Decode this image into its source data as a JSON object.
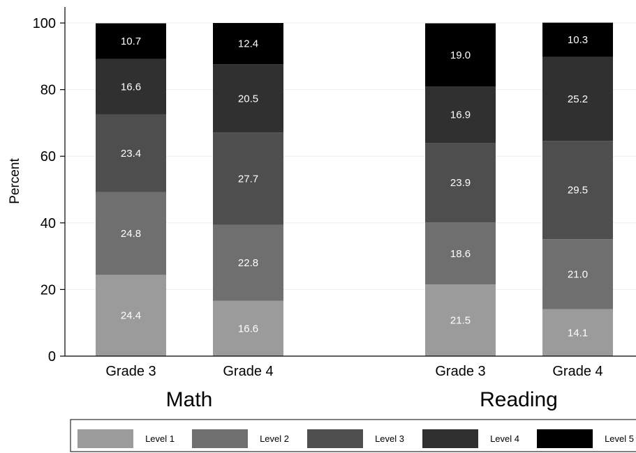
{
  "chart_data": {
    "type": "bar",
    "stacked": true,
    "ylabel": "Percent",
    "ylim": [
      0,
      100
    ],
    "yticks": [
      0,
      20,
      40,
      60,
      80,
      100
    ],
    "grid": true,
    "legend_position": "bottom",
    "groups": [
      {
        "label": "Math",
        "categories": [
          "Grade 3",
          "Grade 4"
        ]
      },
      {
        "label": "Reading",
        "categories": [
          "Grade 3",
          "Grade 4"
        ]
      }
    ],
    "series": [
      {
        "name": "Level 1",
        "color": "#9b9b9b",
        "values": [
          24.4,
          16.6,
          21.5,
          14.1
        ],
        "labels": [
          "24.4",
          "16.6",
          "21.5",
          "14.1"
        ]
      },
      {
        "name": "Level 2",
        "color": "#6f6f6f",
        "values": [
          24.8,
          22.8,
          18.6,
          21.0
        ],
        "labels": [
          "24.8",
          "22.8",
          "18.6",
          "21.0"
        ]
      },
      {
        "name": "Level 3",
        "color": "#4e4e4e",
        "values": [
          23.4,
          27.7,
          23.9,
          29.5
        ],
        "labels": [
          "23.4",
          "27.7",
          "23.9",
          "29.5"
        ]
      },
      {
        "name": "Level 4",
        "color": "#303030",
        "values": [
          16.6,
          20.5,
          16.9,
          25.2
        ],
        "labels": [
          "16.6",
          "20.5",
          "16.9",
          "25.2"
        ]
      },
      {
        "name": "Level 5",
        "color": "#000000",
        "values": [
          10.7,
          12.4,
          19.0,
          10.3
        ],
        "labels": [
          "10.7",
          "12.4",
          "19.0",
          "10.3"
        ]
      }
    ]
  }
}
